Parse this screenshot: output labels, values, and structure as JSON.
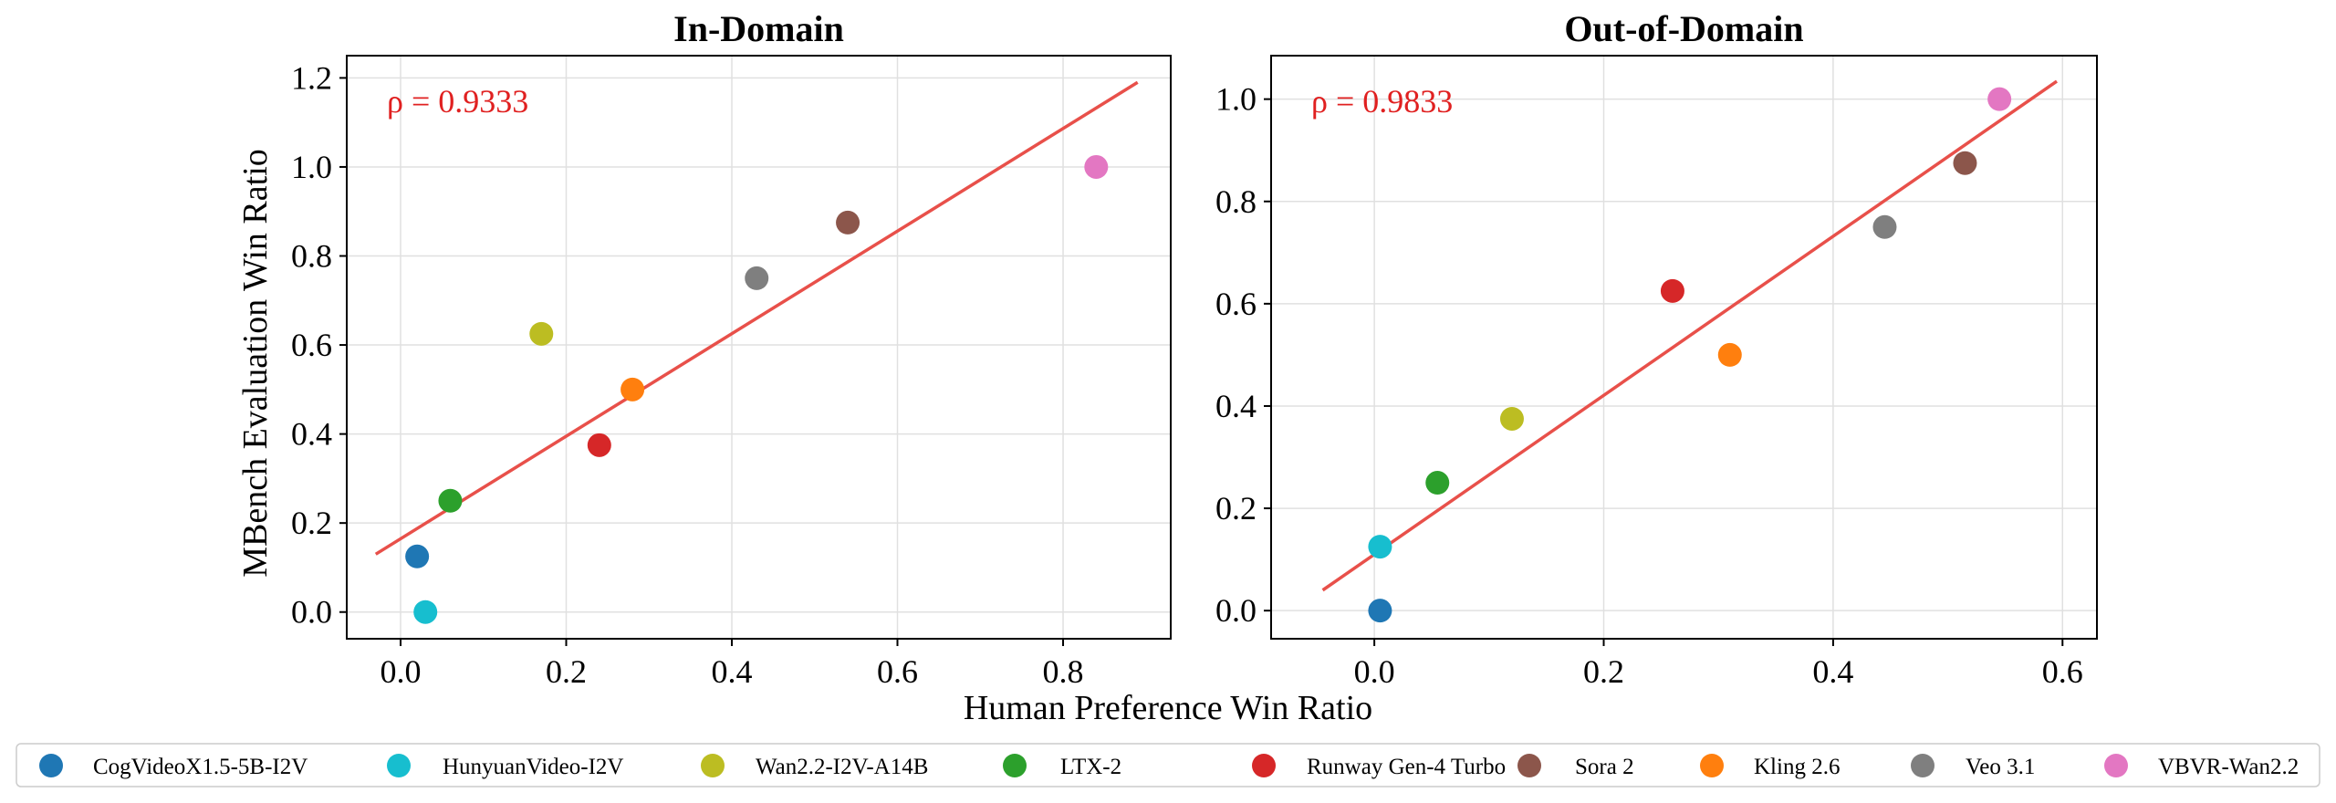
{
  "figure": {
    "xlabel": "Human Preference Win Ratio",
    "ylabel": "MBench Evaluation Win Ratio"
  },
  "chart_data": [
    {
      "type": "scatter",
      "title": "In-Domain",
      "annotation": "ρ = 0.9333",
      "xlim": [
        -0.065,
        0.93
      ],
      "ylim": [
        -0.06,
        1.25
      ],
      "xticks": [
        "0.0",
        "0.2",
        "0.4",
        "0.6",
        "0.8"
      ],
      "yticks": [
        "0.0",
        "0.2",
        "0.4",
        "0.6",
        "0.8",
        "1.0",
        "1.2"
      ],
      "grid": true,
      "fit_line": {
        "x": [
          -0.03,
          0.89
        ],
        "y": [
          0.13,
          1.19
        ],
        "color": "#e8504a"
      },
      "points": [
        {
          "series": "CogVideoX1.5-5B-I2V",
          "x": 0.02,
          "y": 0.125
        },
        {
          "series": "HunyuanVideo-I2V",
          "x": 0.03,
          "y": 0.0
        },
        {
          "series": "Wan2.2-I2V-A14B",
          "x": 0.17,
          "y": 0.625
        },
        {
          "series": "LTX-2",
          "x": 0.06,
          "y": 0.25
        },
        {
          "series": "Runway Gen-4 Turbo",
          "x": 0.24,
          "y": 0.375
        },
        {
          "series": "Sora 2",
          "x": 0.54,
          "y": 0.875
        },
        {
          "series": "Kling 2.6",
          "x": 0.28,
          "y": 0.5
        },
        {
          "series": "Veo 3.1",
          "x": 0.43,
          "y": 0.75
        },
        {
          "series": "VBVR-Wan2.2",
          "x": 0.84,
          "y": 1.0
        }
      ]
    },
    {
      "type": "scatter",
      "title": "Out-of-Domain",
      "annotation": "ρ = 0.9833",
      "xlim": [
        -0.09,
        0.63
      ],
      "ylim": [
        -0.055,
        1.085
      ],
      "xticks": [
        "0.0",
        "0.2",
        "0.4",
        "0.6"
      ],
      "yticks": [
        "0.0",
        "0.2",
        "0.4",
        "0.6",
        "0.8",
        "1.0"
      ],
      "grid": true,
      "fit_line": {
        "x": [
          -0.045,
          0.595
        ],
        "y": [
          0.04,
          1.035
        ],
        "color": "#e8504a"
      },
      "points": [
        {
          "series": "CogVideoX1.5-5B-I2V",
          "x": 0.005,
          "y": 0.0
        },
        {
          "series": "HunyuanVideo-I2V",
          "x": 0.005,
          "y": 0.125
        },
        {
          "series": "Wan2.2-I2V-A14B",
          "x": 0.12,
          "y": 0.375
        },
        {
          "series": "LTX-2",
          "x": 0.055,
          "y": 0.25
        },
        {
          "series": "Runway Gen-4 Turbo",
          "x": 0.26,
          "y": 0.625
        },
        {
          "series": "Sora 2",
          "x": 0.515,
          "y": 0.875
        },
        {
          "series": "Kling 2.6",
          "x": 0.31,
          "y": 0.5
        },
        {
          "series": "Veo 3.1",
          "x": 0.445,
          "y": 0.75
        },
        {
          "series": "VBVR-Wan2.2",
          "x": 0.545,
          "y": 1.0
        }
      ]
    }
  ],
  "legend": {
    "placement": "bottom",
    "items": [
      {
        "name": "CogVideoX1.5-5B-I2V",
        "color": "#1f77b4"
      },
      {
        "name": "HunyuanVideo-I2V",
        "color": "#17becf"
      },
      {
        "name": "Wan2.2-I2V-A14B",
        "color": "#bcbd22"
      },
      {
        "name": "LTX-2",
        "color": "#2ca02c"
      },
      {
        "name": "Runway Gen-4 Turbo",
        "color": "#d62728"
      },
      {
        "name": "Sora 2",
        "color": "#8c564b"
      },
      {
        "name": "Kling 2.6",
        "color": "#ff7f0e"
      },
      {
        "name": "Veo 3.1",
        "color": "#7f7f7f"
      },
      {
        "name": "VBVR-Wan2.2",
        "color": "#e377c2"
      }
    ]
  }
}
